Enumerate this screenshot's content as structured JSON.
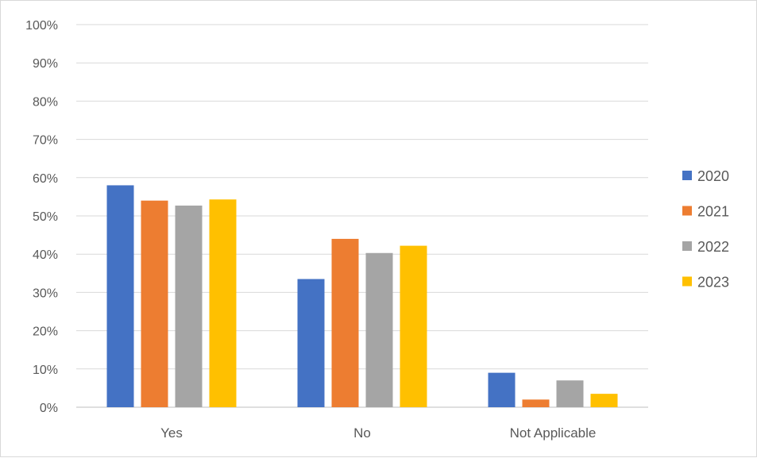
{
  "chart_data": {
    "type": "bar",
    "categories": [
      "Yes",
      "No",
      "Not Applicable"
    ],
    "series": [
      {
        "name": "2020",
        "color": "#4472c4",
        "values": [
          58,
          33.5,
          9
        ]
      },
      {
        "name": "2021",
        "color": "#ed7d31",
        "values": [
          54,
          44,
          2
        ]
      },
      {
        "name": "2022",
        "color": "#a5a5a5",
        "values": [
          52.7,
          40.3,
          7
        ]
      },
      {
        "name": "2023",
        "color": "#ffc000",
        "values": [
          54.3,
          42.2,
          3.5
        ]
      }
    ],
    "y_ticks": [
      "0%",
      "10%",
      "20%",
      "30%",
      "40%",
      "50%",
      "60%",
      "70%",
      "80%",
      "90%",
      "100%"
    ],
    "ylim": [
      0,
      100
    ],
    "grid": true,
    "legend_position": "right"
  }
}
